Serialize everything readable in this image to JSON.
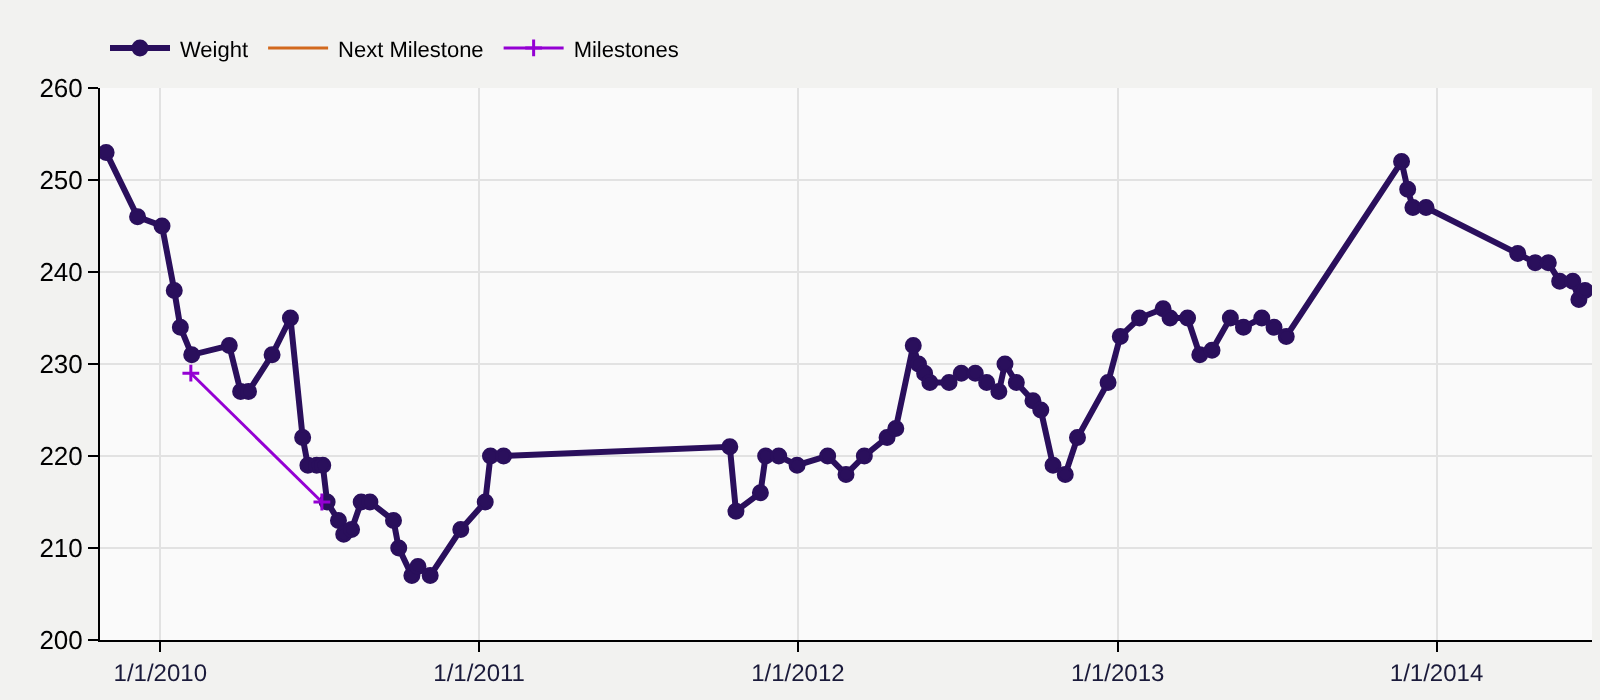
{
  "chart_data": {
    "type": "line",
    "legend": "top left",
    "grid": true,
    "xlim": [
      "2009-10-24",
      "2014-06-28"
    ],
    "xticks": [
      {
        "value": "2010-01-01",
        "label": "1/1/2010"
      },
      {
        "value": "2011-01-01",
        "label": "1/1/2011"
      },
      {
        "value": "2012-01-01",
        "label": "1/1/2012"
      },
      {
        "value": "2013-01-01",
        "label": "1/1/2013"
      },
      {
        "value": "2014-01-01",
        "label": "1/1/2014"
      }
    ],
    "ylim": [
      200,
      260
    ],
    "yticks": [
      200,
      210,
      220,
      230,
      240,
      250,
      260
    ],
    "series": [
      {
        "name": "Weight",
        "color": "#2a0f5c",
        "marker": "circle",
        "x": [
          "2009-10-31",
          "2009-12-06",
          "2010-01-03",
          "2010-01-17",
          "2010-01-24",
          "2010-02-06",
          "2010-03-21",
          "2010-04-03",
          "2010-04-12",
          "2010-05-09",
          "2010-05-30",
          "2010-06-13",
          "2010-06-19",
          "2010-06-29",
          "2010-07-06",
          "2010-07-11",
          "2010-07-24",
          "2010-07-30",
          "2010-08-08",
          "2010-08-19",
          "2010-08-29",
          "2010-09-25",
          "2010-10-01",
          "2010-10-16",
          "2010-10-23",
          "2010-11-06",
          "2010-12-11",
          "2011-01-08",
          "2011-01-14",
          "2011-01-29",
          "2011-10-15",
          "2011-10-22",
          "2011-11-19",
          "2011-11-25",
          "2011-12-10",
          "2011-12-31",
          "2012-02-04",
          "2012-02-25",
          "2012-03-17",
          "2012-04-12",
          "2012-04-22",
          "2012-05-12",
          "2012-05-18",
          "2012-05-25",
          "2012-05-31",
          "2012-06-22",
          "2012-07-06",
          "2012-07-22",
          "2012-08-04",
          "2012-08-18",
          "2012-08-25",
          "2012-09-07",
          "2012-09-26",
          "2012-10-05",
          "2012-10-19",
          "2012-11-02",
          "2012-11-16",
          "2012-12-21",
          "2013-01-04",
          "2013-01-26",
          "2013-02-22",
          "2013-03-02",
          "2013-03-22",
          "2013-04-05",
          "2013-04-19",
          "2013-05-10",
          "2013-05-25",
          "2013-06-15",
          "2013-06-29",
          "2013-07-13",
          "2013-11-22",
          "2013-11-29",
          "2013-12-05",
          "2013-12-20",
          "2014-04-04",
          "2014-04-24",
          "2014-05-09",
          "2014-05-22",
          "2014-06-06",
          "2014-06-13",
          "2014-06-20"
        ],
        "values": [
          253,
          246,
          245,
          238,
          234,
          231,
          232,
          227,
          227,
          231,
          235,
          222,
          219,
          219,
          219,
          215,
          213,
          211.5,
          212,
          215,
          215,
          213,
          210,
          207,
          208,
          207,
          212,
          215,
          220,
          220,
          221,
          214,
          216,
          220,
          220,
          219,
          220,
          218,
          220,
          222,
          223,
          232,
          230,
          229,
          228,
          228,
          229,
          229,
          228,
          227,
          230,
          228,
          226,
          225,
          219,
          218,
          222,
          228,
          233,
          235,
          236,
          235,
          235,
          231,
          231.5,
          235,
          234,
          235,
          234,
          233,
          252,
          249,
          247,
          247,
          242,
          241,
          241,
          239,
          239,
          237,
          238
        ]
      },
      {
        "name": "Next Milestone",
        "color": "#d2691e",
        "marker": "none"
      },
      {
        "name": "Milestones",
        "color": "#9400d3",
        "marker": "cross",
        "x": [
          "2010-02-05",
          "2010-07-05"
        ],
        "values": [
          229,
          215
        ]
      }
    ]
  }
}
